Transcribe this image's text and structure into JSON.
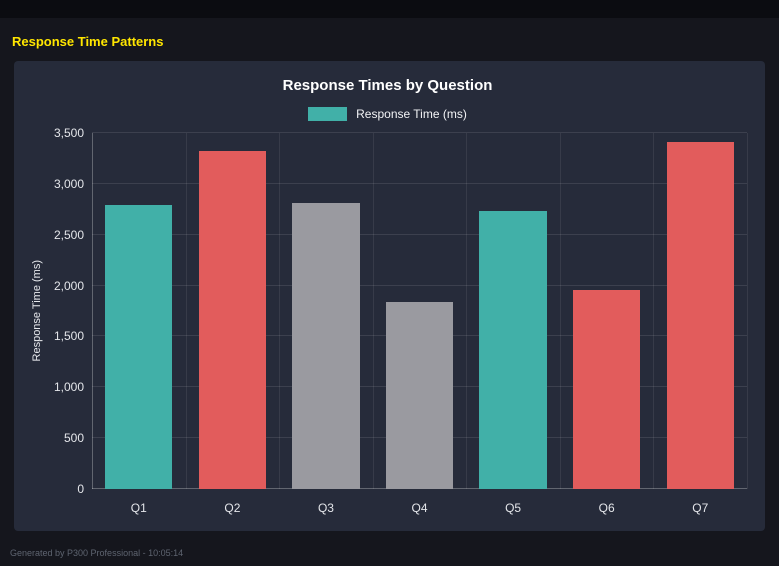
{
  "page": {
    "title": "Response Time Patterns",
    "footer": "Generated by P300 Professional - 10:05:14"
  },
  "colors": {
    "accent_yellow": "#ffe600",
    "panel_background": "#262b3a",
    "page_background": "#15161d",
    "teal": "#41b0a8",
    "red": "#e25c5c",
    "gray": "#9a9aa0"
  },
  "chart_data": {
    "type": "bar",
    "title": "Response Times by Question",
    "legend": [
      {
        "label": "Response Time (ms)",
        "color": "#41b0a8"
      }
    ],
    "legend_position": "top",
    "categories": [
      "Q1",
      "Q2",
      "Q3",
      "Q4",
      "Q5",
      "Q6",
      "Q7"
    ],
    "values": [
      2790,
      3320,
      2810,
      1840,
      2730,
      1960,
      3410
    ],
    "bar_colors": [
      "#41b0a8",
      "#e25c5c",
      "#9a9aa0",
      "#9a9aa0",
      "#41b0a8",
      "#e25c5c",
      "#e25c5c"
    ],
    "xlabel": "",
    "ylabel": "Response Time (ms)",
    "ylim": [
      0,
      3500
    ],
    "yticks": [
      0,
      500,
      1000,
      1500,
      2000,
      2500,
      3000,
      3500
    ],
    "ytick_labels": [
      "0",
      "500",
      "1,000",
      "1,500",
      "2,000",
      "2,500",
      "3,000",
      "3,500"
    ],
    "grid": true
  }
}
